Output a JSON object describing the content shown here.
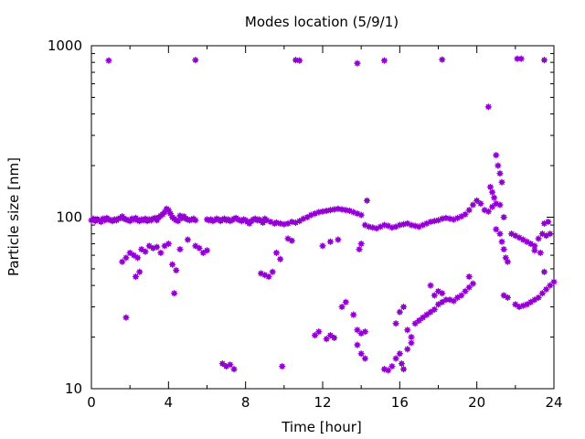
{
  "chart_data": {
    "type": "scatter",
    "title": "Modes location (5/9/1)",
    "xlabel": "Time [hour]",
    "ylabel": "Particle size [nm]",
    "xlim": [
      0,
      24
    ],
    "ylim": [
      10,
      1000
    ],
    "yscale": "log",
    "grid": false,
    "legend": "none",
    "marker_color": "#9400d3",
    "xticks": [
      0,
      4,
      8,
      12,
      16,
      20,
      24
    ],
    "xtick_labels": [
      "0",
      "4",
      "8",
      "12",
      "16",
      "20",
      "24"
    ],
    "yticks": [
      10,
      100,
      1000
    ],
    "ytick_labels": [
      "10",
      "100",
      "1000"
    ],
    "series": [
      {
        "points": [
          [
            0.0,
            96
          ],
          [
            0.1,
            98
          ],
          [
            0.2,
            95
          ],
          [
            0.3,
            97
          ],
          [
            0.4,
            96
          ],
          [
            0.5,
            94
          ],
          [
            0.6,
            98
          ],
          [
            0.7,
            96
          ],
          [
            0.8,
            99
          ],
          [
            0.9,
            97
          ],
          [
            1.0,
            96
          ],
          [
            1.1,
            95
          ],
          [
            1.2,
            97
          ],
          [
            1.3,
            96
          ],
          [
            1.4,
            98
          ],
          [
            1.5,
            99
          ],
          [
            1.6,
            101
          ],
          [
            1.7,
            98
          ],
          [
            1.8,
            97
          ],
          [
            1.9,
            96
          ],
          [
            2.0,
            95
          ],
          [
            2.1,
            98
          ],
          [
            2.2,
            97
          ],
          [
            2.3,
            99
          ],
          [
            2.4,
            96
          ],
          [
            2.5,
            95
          ],
          [
            2.6,
            97
          ],
          [
            2.7,
            96
          ],
          [
            2.8,
            98
          ],
          [
            2.9,
            95
          ],
          [
            3.0,
            97
          ],
          [
            3.1,
            96
          ],
          [
            3.2,
            98
          ],
          [
            3.3,
            99
          ],
          [
            3.4,
            96
          ],
          [
            3.5,
            100
          ],
          [
            3.6,
            102
          ],
          [
            3.7,
            104
          ],
          [
            3.8,
            107
          ],
          [
            3.9,
            112
          ],
          [
            4.0,
            110
          ],
          [
            4.1,
            105
          ],
          [
            4.2,
            100
          ],
          [
            4.3,
            98
          ],
          [
            4.4,
            96
          ],
          [
            4.5,
            95
          ],
          [
            4.6,
            102
          ],
          [
            4.7,
            99
          ],
          [
            4.8,
            101
          ],
          [
            4.9,
            98
          ],
          [
            5.0,
            97
          ],
          [
            5.1,
            96
          ],
          [
            5.2,
            97
          ],
          [
            5.3,
            98
          ],
          [
            5.4,
            96
          ],
          [
            6.0,
            97
          ],
          [
            6.1,
            96
          ],
          [
            6.2,
            97
          ],
          [
            6.3,
            95
          ],
          [
            6.4,
            96
          ],
          [
            6.5,
            98
          ],
          [
            6.6,
            97
          ],
          [
            6.7,
            95
          ],
          [
            6.8,
            97
          ],
          [
            6.9,
            98
          ],
          [
            7.0,
            96
          ],
          [
            7.1,
            97
          ],
          [
            7.2,
            95
          ],
          [
            7.3,
            96
          ],
          [
            7.4,
            98
          ],
          [
            7.5,
            99
          ],
          [
            7.6,
            97
          ],
          [
            7.7,
            96
          ],
          [
            7.8,
            95
          ],
          [
            7.9,
            97
          ],
          [
            8.0,
            96
          ],
          [
            8.1,
            94
          ],
          [
            8.2,
            92
          ],
          [
            8.3,
            95
          ],
          [
            8.4,
            97
          ],
          [
            8.5,
            98
          ],
          [
            8.6,
            96
          ],
          [
            8.7,
            97
          ],
          [
            8.8,
            95
          ],
          [
            8.9,
            93
          ],
          [
            9.0,
            98
          ],
          [
            9.1,
            96
          ],
          [
            9.3,
            94
          ],
          [
            9.5,
            92
          ],
          [
            9.6,
            93
          ],
          [
            9.8,
            92
          ],
          [
            10.0,
            91
          ],
          [
            10.2,
            92
          ],
          [
            10.4,
            94
          ],
          [
            10.6,
            93
          ],
          [
            10.8,
            95
          ],
          [
            11.0,
            98
          ],
          [
            11.2,
            100
          ],
          [
            11.4,
            103
          ],
          [
            11.6,
            105
          ],
          [
            11.8,
            107
          ],
          [
            12.0,
            108
          ],
          [
            12.2,
            109
          ],
          [
            12.4,
            110
          ],
          [
            12.6,
            111
          ],
          [
            12.8,
            112
          ],
          [
            13.0,
            111
          ],
          [
            13.2,
            110
          ],
          [
            13.4,
            109
          ],
          [
            13.6,
            107
          ],
          [
            13.8,
            105
          ],
          [
            14.0,
            103
          ],
          [
            14.2,
            90
          ],
          [
            14.4,
            88
          ],
          [
            14.6,
            87
          ],
          [
            14.8,
            86
          ],
          [
            15.0,
            88
          ],
          [
            15.2,
            90
          ],
          [
            15.4,
            89
          ],
          [
            15.6,
            87
          ],
          [
            15.8,
            88
          ],
          [
            16.0,
            90
          ],
          [
            16.2,
            91
          ],
          [
            16.4,
            92
          ],
          [
            16.6,
            90
          ],
          [
            16.8,
            89
          ],
          [
            17.0,
            88
          ],
          [
            17.2,
            90
          ],
          [
            17.4,
            92
          ],
          [
            17.6,
            94
          ],
          [
            17.8,
            95
          ],
          [
            18.0,
            96
          ],
          [
            18.2,
            98
          ],
          [
            18.4,
            99
          ],
          [
            18.6,
            98
          ],
          [
            18.8,
            97
          ],
          [
            19.0,
            99
          ],
          [
            19.2,
            101
          ],
          [
            19.4,
            104
          ],
          [
            19.6,
            110
          ],
          [
            19.8,
            118
          ],
          [
            20.0,
            125
          ],
          [
            20.2,
            120
          ],
          [
            20.4,
            110
          ],
          [
            20.6,
            108
          ],
          [
            20.8,
            115
          ],
          [
            21.0,
            120
          ],
          [
            21.2,
            118
          ],
          [
            0.9,
            820
          ],
          [
            5.4,
            825
          ],
          [
            10.6,
            825
          ],
          [
            10.8,
            820
          ],
          [
            13.8,
            790
          ],
          [
            15.2,
            820
          ],
          [
            18.2,
            830
          ],
          [
            22.1,
            840
          ],
          [
            22.3,
            840
          ],
          [
            23.5,
            825
          ],
          [
            1.6,
            55
          ],
          [
            1.8,
            58
          ],
          [
            2.0,
            62
          ],
          [
            2.2,
            60
          ],
          [
            2.4,
            58
          ],
          [
            2.6,
            65
          ],
          [
            2.8,
            63
          ],
          [
            3.0,
            68
          ],
          [
            3.2,
            66
          ],
          [
            3.4,
            67
          ],
          [
            3.6,
            62
          ],
          [
            3.8,
            68
          ],
          [
            4.0,
            70
          ],
          [
            4.2,
            53
          ],
          [
            4.4,
            49
          ],
          [
            4.6,
            65
          ],
          [
            5.0,
            74
          ],
          [
            5.4,
            68
          ],
          [
            5.6,
            66
          ],
          [
            5.8,
            62
          ],
          [
            6.0,
            64
          ],
          [
            1.8,
            26
          ],
          [
            2.3,
            45
          ],
          [
            2.5,
            48
          ],
          [
            4.3,
            36
          ],
          [
            6.8,
            14
          ],
          [
            7.0,
            13.5
          ],
          [
            7.2,
            13.8
          ],
          [
            7.4,
            13
          ],
          [
            9.9,
            13.5
          ],
          [
            8.8,
            47
          ],
          [
            9.0,
            46
          ],
          [
            9.2,
            45
          ],
          [
            9.4,
            48
          ],
          [
            9.6,
            62
          ],
          [
            9.8,
            57
          ],
          [
            10.2,
            75
          ],
          [
            10.4,
            73
          ],
          [
            11.6,
            20.5
          ],
          [
            11.8,
            21.5
          ],
          [
            12.2,
            19.5
          ],
          [
            12.4,
            20.5
          ],
          [
            12.6,
            19.8
          ],
          [
            12.0,
            68
          ],
          [
            12.4,
            72
          ],
          [
            12.8,
            74
          ],
          [
            13.0,
            30
          ],
          [
            13.2,
            32
          ],
          [
            13.6,
            27
          ],
          [
            13.8,
            22
          ],
          [
            14.0,
            21
          ],
          [
            14.2,
            21.5
          ],
          [
            13.8,
            18
          ],
          [
            14.0,
            16
          ],
          [
            14.2,
            15
          ],
          [
            13.9,
            65
          ],
          [
            14.0,
            70
          ],
          [
            14.3,
            125
          ],
          [
            15.2,
            13
          ],
          [
            15.4,
            12.8
          ],
          [
            15.6,
            13.5
          ],
          [
            15.8,
            15
          ],
          [
            16.0,
            16
          ],
          [
            16.1,
            14
          ],
          [
            16.2,
            13
          ],
          [
            16.4,
            17
          ],
          [
            16.6,
            18.5
          ],
          [
            15.8,
            24
          ],
          [
            16.0,
            28
          ],
          [
            16.2,
            30
          ],
          [
            16.4,
            22
          ],
          [
            16.6,
            20
          ],
          [
            16.8,
            24
          ],
          [
            17.0,
            25
          ],
          [
            17.2,
            26
          ],
          [
            17.4,
            27
          ],
          [
            17.6,
            28
          ],
          [
            17.8,
            29
          ],
          [
            18.0,
            31
          ],
          [
            18.2,
            32
          ],
          [
            18.4,
            33
          ],
          [
            18.6,
            33
          ],
          [
            18.8,
            32.5
          ],
          [
            19.0,
            34
          ],
          [
            19.2,
            35
          ],
          [
            19.4,
            37
          ],
          [
            19.6,
            39
          ],
          [
            19.8,
            41
          ],
          [
            17.8,
            35
          ],
          [
            17.6,
            40
          ],
          [
            18.0,
            37
          ],
          [
            18.2,
            36
          ],
          [
            19.6,
            45
          ],
          [
            20.6,
            440
          ],
          [
            20.7,
            150
          ],
          [
            20.8,
            140
          ],
          [
            20.9,
            130
          ],
          [
            21.0,
            230
          ],
          [
            21.1,
            200
          ],
          [
            21.2,
            180
          ],
          [
            21.3,
            160
          ],
          [
            21.4,
            100
          ],
          [
            21.0,
            85
          ],
          [
            21.2,
            80
          ],
          [
            21.3,
            72
          ],
          [
            21.4,
            65
          ],
          [
            21.5,
            58
          ],
          [
            21.6,
            55
          ],
          [
            21.4,
            35
          ],
          [
            21.6,
            34
          ],
          [
            21.8,
            80
          ],
          [
            22.0,
            78
          ],
          [
            22.2,
            76
          ],
          [
            22.4,
            74
          ],
          [
            22.6,
            72
          ],
          [
            22.8,
            70
          ],
          [
            23.0,
            68
          ],
          [
            23.2,
            75
          ],
          [
            23.4,
            80
          ],
          [
            23.6,
            78
          ],
          [
            23.8,
            80
          ],
          [
            23.5,
            92
          ],
          [
            23.7,
            94
          ],
          [
            23.3,
            62
          ],
          [
            23.0,
            64
          ],
          [
            22.0,
            31
          ],
          [
            22.2,
            30
          ],
          [
            22.4,
            30.5
          ],
          [
            22.6,
            31
          ],
          [
            22.8,
            32
          ],
          [
            23.0,
            33
          ],
          [
            23.2,
            34
          ],
          [
            23.4,
            36
          ],
          [
            23.6,
            38
          ],
          [
            23.8,
            40
          ],
          [
            24.0,
            42
          ],
          [
            23.5,
            48
          ]
        ]
      }
    ]
  }
}
